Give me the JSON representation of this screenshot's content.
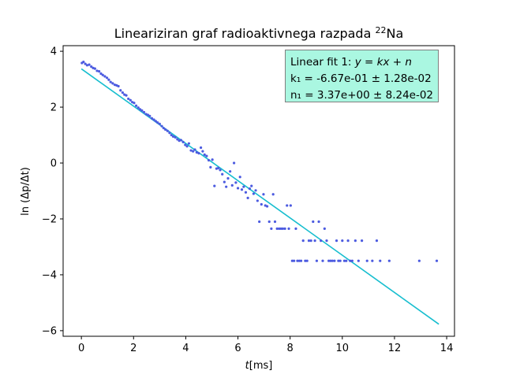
{
  "chart_data": {
    "type": "scatter",
    "title_prefix": "Lineariziran graf radioaktivnega razpada ",
    "title_sup": "22",
    "title_suffix": "Na",
    "xlabel_var": "t",
    "xlabel_unit": "[ms]",
    "ylabel": "ln (Δp/Δt)",
    "xlim": [
      -0.7,
      14.3
    ],
    "ylim": [
      -6.2,
      4.2
    ],
    "xticks": [
      0,
      2,
      4,
      6,
      8,
      10,
      12,
      14
    ],
    "yticks": [
      4,
      2,
      0,
      -2,
      -4,
      -6
    ],
    "grid": false,
    "colors": {
      "points": "#4c5be0",
      "fit": "#17becf",
      "legend_bg": "#aaf7e1"
    },
    "fit": {
      "k": -0.667,
      "n": 3.37,
      "x_range": [
        0,
        13.7
      ],
      "line1_label": "Linear fit 1: ",
      "line1_eq": "y = kx + n",
      "line2": "k₁ = -6.67e-01 ± 1.28e-02",
      "line3": "n₁ = 3.37e+00 ± 8.24e-02"
    },
    "points": [
      [
        0.02,
        3.58
      ],
      [
        0.08,
        3.62
      ],
      [
        0.15,
        3.55
      ],
      [
        0.22,
        3.5
      ],
      [
        0.3,
        3.52
      ],
      [
        0.38,
        3.45
      ],
      [
        0.45,
        3.4
      ],
      [
        0.52,
        3.38
      ],
      [
        0.6,
        3.3
      ],
      [
        0.68,
        3.28
      ],
      [
        0.75,
        3.2
      ],
      [
        0.82,
        3.15
      ],
      [
        0.9,
        3.1
      ],
      [
        0.98,
        3.05
      ],
      [
        1.05,
        2.98
      ],
      [
        1.12,
        2.9
      ],
      [
        1.2,
        2.85
      ],
      [
        1.28,
        2.8
      ],
      [
        1.35,
        2.78
      ],
      [
        1.42,
        2.75
      ],
      [
        1.5,
        2.6
      ],
      [
        1.58,
        2.52
      ],
      [
        1.65,
        2.45
      ],
      [
        1.72,
        2.42
      ],
      [
        1.8,
        2.3
      ],
      [
        1.88,
        2.25
      ],
      [
        1.95,
        2.18
      ],
      [
        2.02,
        2.15
      ],
      [
        2.1,
        2.05
      ],
      [
        2.18,
        1.98
      ],
      [
        2.25,
        1.92
      ],
      [
        2.32,
        1.88
      ],
      [
        2.4,
        1.82
      ],
      [
        2.48,
        1.75
      ],
      [
        2.55,
        1.72
      ],
      [
        2.62,
        1.68
      ],
      [
        2.7,
        1.6
      ],
      [
        2.78,
        1.55
      ],
      [
        2.85,
        1.5
      ],
      [
        2.92,
        1.45
      ],
      [
        3.0,
        1.4
      ],
      [
        3.08,
        1.32
      ],
      [
        3.15,
        1.25
      ],
      [
        3.22,
        1.2
      ],
      [
        3.3,
        1.15
      ],
      [
        3.38,
        1.08
      ],
      [
        3.45,
        1.0
      ],
      [
        3.52,
        0.95
      ],
      [
        3.6,
        0.92
      ],
      [
        3.68,
        0.85
      ],
      [
        3.75,
        0.8
      ],
      [
        3.82,
        0.82
      ],
      [
        3.9,
        0.75
      ],
      [
        3.98,
        0.65
      ],
      [
        4.05,
        0.6
      ],
      [
        4.12,
        0.7
      ],
      [
        4.2,
        0.45
      ],
      [
        4.28,
        0.42
      ],
      [
        4.35,
        0.48
      ],
      [
        4.42,
        0.38
      ],
      [
        4.5,
        0.35
      ],
      [
        4.58,
        0.55
      ],
      [
        4.65,
        0.42
      ],
      [
        4.72,
        0.3
      ],
      [
        4.8,
        0.25
      ],
      [
        4.88,
        0.1
      ],
      [
        4.95,
        -0.15
      ],
      [
        5.02,
        0.12
      ],
      [
        5.1,
        -0.82
      ],
      [
        5.18,
        -0.2
      ],
      [
        5.25,
        -0.18
      ],
      [
        5.32,
        -0.25
      ],
      [
        5.4,
        -0.4
      ],
      [
        5.48,
        -0.68
      ],
      [
        5.55,
        -0.85
      ],
      [
        5.62,
        -0.55
      ],
      [
        5.7,
        -0.3
      ],
      [
        5.78,
        -0.8
      ],
      [
        5.85,
        0.0
      ],
      [
        5.92,
        -0.7
      ],
      [
        6.0,
        -0.9
      ],
      [
        6.08,
        -0.5
      ],
      [
        6.15,
        -0.95
      ],
      [
        6.22,
        -0.85
      ],
      [
        6.3,
        -1.05
      ],
      [
        6.38,
        -1.25
      ],
      [
        6.45,
        -0.92
      ],
      [
        6.52,
        -0.82
      ],
      [
        6.6,
        -1.1
      ],
      [
        6.68,
        -0.98
      ],
      [
        6.75,
        -1.35
      ],
      [
        6.82,
        -2.1
      ],
      [
        6.9,
        -1.48
      ],
      [
        6.98,
        -1.12
      ],
      [
        7.05,
        -1.52
      ],
      [
        7.12,
        -1.55
      ],
      [
        7.2,
        -2.1
      ],
      [
        7.28,
        -2.35
      ],
      [
        7.35,
        -1.12
      ],
      [
        7.42,
        -2.1
      ],
      [
        7.5,
        -2.35
      ],
      [
        7.58,
        -2.35
      ],
      [
        7.65,
        -2.35
      ],
      [
        7.72,
        -2.35
      ],
      [
        7.8,
        -2.35
      ],
      [
        7.88,
        -1.52
      ],
      [
        7.95,
        -2.35
      ],
      [
        8.02,
        -1.52
      ],
      [
        8.08,
        -3.5
      ],
      [
        8.15,
        -3.5
      ],
      [
        8.22,
        -2.35
      ],
      [
        8.28,
        -3.5
      ],
      [
        8.35,
        -3.5
      ],
      [
        8.42,
        -3.5
      ],
      [
        8.5,
        -2.78
      ],
      [
        8.58,
        -3.5
      ],
      [
        8.65,
        -3.5
      ],
      [
        8.72,
        -2.78
      ],
      [
        8.8,
        -2.78
      ],
      [
        8.88,
        -2.1
      ],
      [
        8.95,
        -2.78
      ],
      [
        9.02,
        -3.5
      ],
      [
        9.1,
        -2.1
      ],
      [
        9.18,
        -2.78
      ],
      [
        9.25,
        -3.5
      ],
      [
        9.32,
        -2.35
      ],
      [
        9.4,
        -2.78
      ],
      [
        9.48,
        -3.5
      ],
      [
        9.55,
        -3.5
      ],
      [
        9.62,
        -3.5
      ],
      [
        9.7,
        -3.5
      ],
      [
        9.78,
        -2.78
      ],
      [
        9.85,
        -3.5
      ],
      [
        9.92,
        -3.5
      ],
      [
        10.0,
        -2.78
      ],
      [
        10.08,
        -3.5
      ],
      [
        10.15,
        -3.5
      ],
      [
        10.22,
        -2.78
      ],
      [
        10.3,
        -3.5
      ],
      [
        10.38,
        -3.5
      ],
      [
        10.5,
        -2.78
      ],
      [
        10.62,
        -3.5
      ],
      [
        10.75,
        -2.78
      ],
      [
        10.95,
        -3.5
      ],
      [
        11.15,
        -3.5
      ],
      [
        11.32,
        -2.78
      ],
      [
        11.45,
        -3.5
      ],
      [
        11.8,
        -3.5
      ],
      [
        12.95,
        -3.5
      ],
      [
        13.62,
        -3.5
      ]
    ]
  }
}
